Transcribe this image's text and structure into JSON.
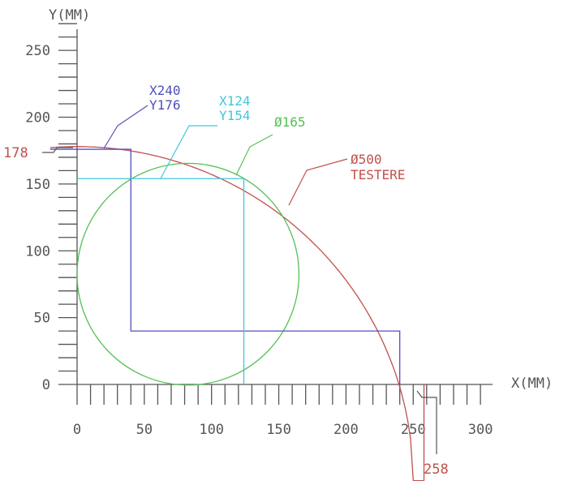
{
  "axes": {
    "x_title": "X(MM)",
    "y_title": "Y(MM)",
    "x_ticks": [
      "0",
      "50",
      "100",
      "150",
      "200",
      "250",
      "300"
    ],
    "y_ticks": [
      "0",
      "50",
      "100",
      "150",
      "200",
      "250"
    ],
    "x_range": [
      0,
      300
    ],
    "y_range": [
      0,
      250
    ],
    "minor_tick_step": 10,
    "color": "#555555"
  },
  "markers": {
    "y_max": "178",
    "x_max": "258",
    "color": "#c0504d"
  },
  "shapes": {
    "testere": {
      "label_line1": "Ø500",
      "label_line2": "TESTERE",
      "radius": 250,
      "center": [
        0,
        -72
      ],
      "color": "#c0504d"
    },
    "circle": {
      "label": "Ø165",
      "diameter": 165,
      "center": [
        82.5,
        82.5
      ],
      "color": "#55c055"
    },
    "rect_blue": {
      "label_line1": "X240",
      "label_line2": "Y176",
      "x": [
        40,
        240
      ],
      "y": [
        40,
        176
      ],
      "color": "#5050bb"
    },
    "rect_cyan": {
      "label_line1": "X124",
      "label_line2": "Y154",
      "x": [
        0,
        124
      ],
      "y": [
        0,
        154
      ],
      "color": "#40c8d8"
    }
  }
}
